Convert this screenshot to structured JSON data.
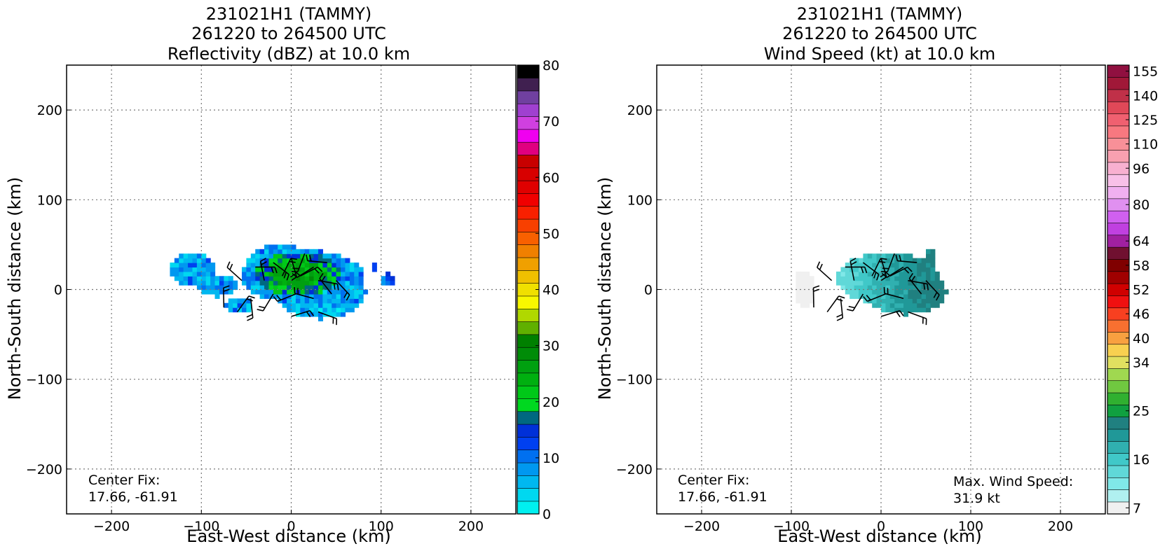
{
  "panels": [
    {
      "title": [
        "231021H1 (TAMMY)",
        "261220 to 264500 UTC",
        "Reflectivity (dBZ) at 10.0 km"
      ],
      "xlabel": "East-West distance (km)",
      "ylabel": "North-South distance (km)",
      "center_fix": [
        "Center Fix:",
        "17.66, -61.91"
      ],
      "max_wind": null,
      "colorbar_ticks": [
        "0",
        "10",
        "20",
        "30",
        "40",
        "50",
        "60",
        "70",
        "80"
      ]
    },
    {
      "title": [
        "231021H1 (TAMMY)",
        "261220 to 264500 UTC",
        "Wind Speed (kt) at 10.0 km"
      ],
      "xlabel": "East-West distance (km)",
      "ylabel": "North-South distance (km)",
      "center_fix": [
        "Center Fix:",
        "17.66, -61.91"
      ],
      "max_wind": [
        "Max. Wind Speed:",
        "31.9 kt"
      ],
      "colorbar_ticks": [
        "7",
        "16",
        "25",
        "34",
        "40",
        "46",
        "52",
        "58",
        "64",
        "80",
        "96",
        "110",
        "125",
        "140",
        "155"
      ]
    }
  ],
  "chart_data": [
    {
      "type": "heatmap",
      "title": "231021H1 (TAMMY) 261220 to 264500 UTC Reflectivity (dBZ) at 10.0 km",
      "xlabel": "East-West distance (km)",
      "ylabel": "North-South distance (km)",
      "xlim": [
        -250,
        250
      ],
      "ylim": [
        -250,
        250
      ],
      "xticks": [
        -200,
        -100,
        0,
        100,
        200
      ],
      "yticks": [
        -200,
        -100,
        0,
        100,
        200
      ],
      "grid": true,
      "colorbar": {
        "range": [
          0,
          80
        ],
        "ticks": [
          0,
          10,
          20,
          30,
          40,
          50,
          60,
          70,
          80
        ],
        "colors": [
          "#00f0f0",
          "#00d8f0",
          "#00b8f0",
          "#0098f0",
          "#0070f0",
          "#0040f0",
          "#0030d8",
          "#006880",
          "#00d820",
          "#00c818",
          "#00b010",
          "#00a010",
          "#008c08",
          "#008000",
          "#60b000",
          "#b0d800",
          "#f8f800",
          "#f0e000",
          "#f0c000",
          "#f0a000",
          "#f08000",
          "#f86000",
          "#f84000",
          "#f82000",
          "#f00000",
          "#e00000",
          "#d80000",
          "#c80000",
          "#e00080",
          "#f000f0",
          "#d040e0",
          "#a040d0",
          "#7040a0",
          "#402050",
          "#000000"
        ]
      },
      "echo_regions": [
        {
          "name": "main",
          "x_range": [
            -60,
            80
          ],
          "y_range": [
            -40,
            50
          ],
          "peak_dBZ": 25
        },
        {
          "name": "west",
          "x_range": [
            -135,
            -45
          ],
          "y_range": [
            -35,
            42
          ],
          "peak_dBZ": 15
        },
        {
          "name": "east",
          "x_range": [
            85,
            110
          ],
          "y_range": [
            0,
            30
          ],
          "peak_dBZ": 15
        }
      ]
    },
    {
      "type": "heatmap",
      "title": "231021H1 (TAMMY) 261220 to 264500 UTC Wind Speed (kt) at 10.0 km",
      "xlabel": "East-West distance (km)",
      "ylabel": "North-South distance (km)",
      "xlim": [
        -250,
        250
      ],
      "ylim": [
        -250,
        250
      ],
      "xticks": [
        -200,
        -100,
        0,
        100,
        200
      ],
      "yticks": [
        -200,
        -100,
        0,
        100,
        200
      ],
      "grid": true,
      "max_wind_speed_kt": 31.9,
      "colorbar": {
        "ticks": [
          7,
          16,
          25,
          34,
          40,
          46,
          52,
          58,
          64,
          80,
          96,
          110,
          125,
          140,
          155
        ],
        "colors": [
          "#f0f0f0",
          "#b0f0f0",
          "#80e8e8",
          "#60d8d8",
          "#40c8c8",
          "#30b0b0",
          "#209898",
          "#208080",
          "#10a040",
          "#30b030",
          "#70c840",
          "#a0d850",
          "#e0e060",
          "#f8d050",
          "#f8a040",
          "#f87030",
          "#f84020",
          "#f01010",
          "#d00000",
          "#a00000",
          "#800000",
          "#701030",
          "#a020a0",
          "#c040e0",
          "#d060f0",
          "#e090f0",
          "#f0b0f0",
          "#f8c0e8",
          "#f8b0d0",
          "#f8a0b0",
          "#f89098",
          "#f87880",
          "#f06070",
          "#e04858",
          "#c03048",
          "#a01838",
          "#901040"
        ]
      },
      "wind_regions": [
        {
          "name": "main",
          "x_range": [
            -60,
            75
          ],
          "y_range": [
            -30,
            45
          ],
          "peak_kt": 31.9
        },
        {
          "name": "west-light",
          "x_range": [
            -100,
            -60
          ],
          "y_range": [
            -30,
            25
          ],
          "peak_kt": 10
        }
      ]
    }
  ]
}
